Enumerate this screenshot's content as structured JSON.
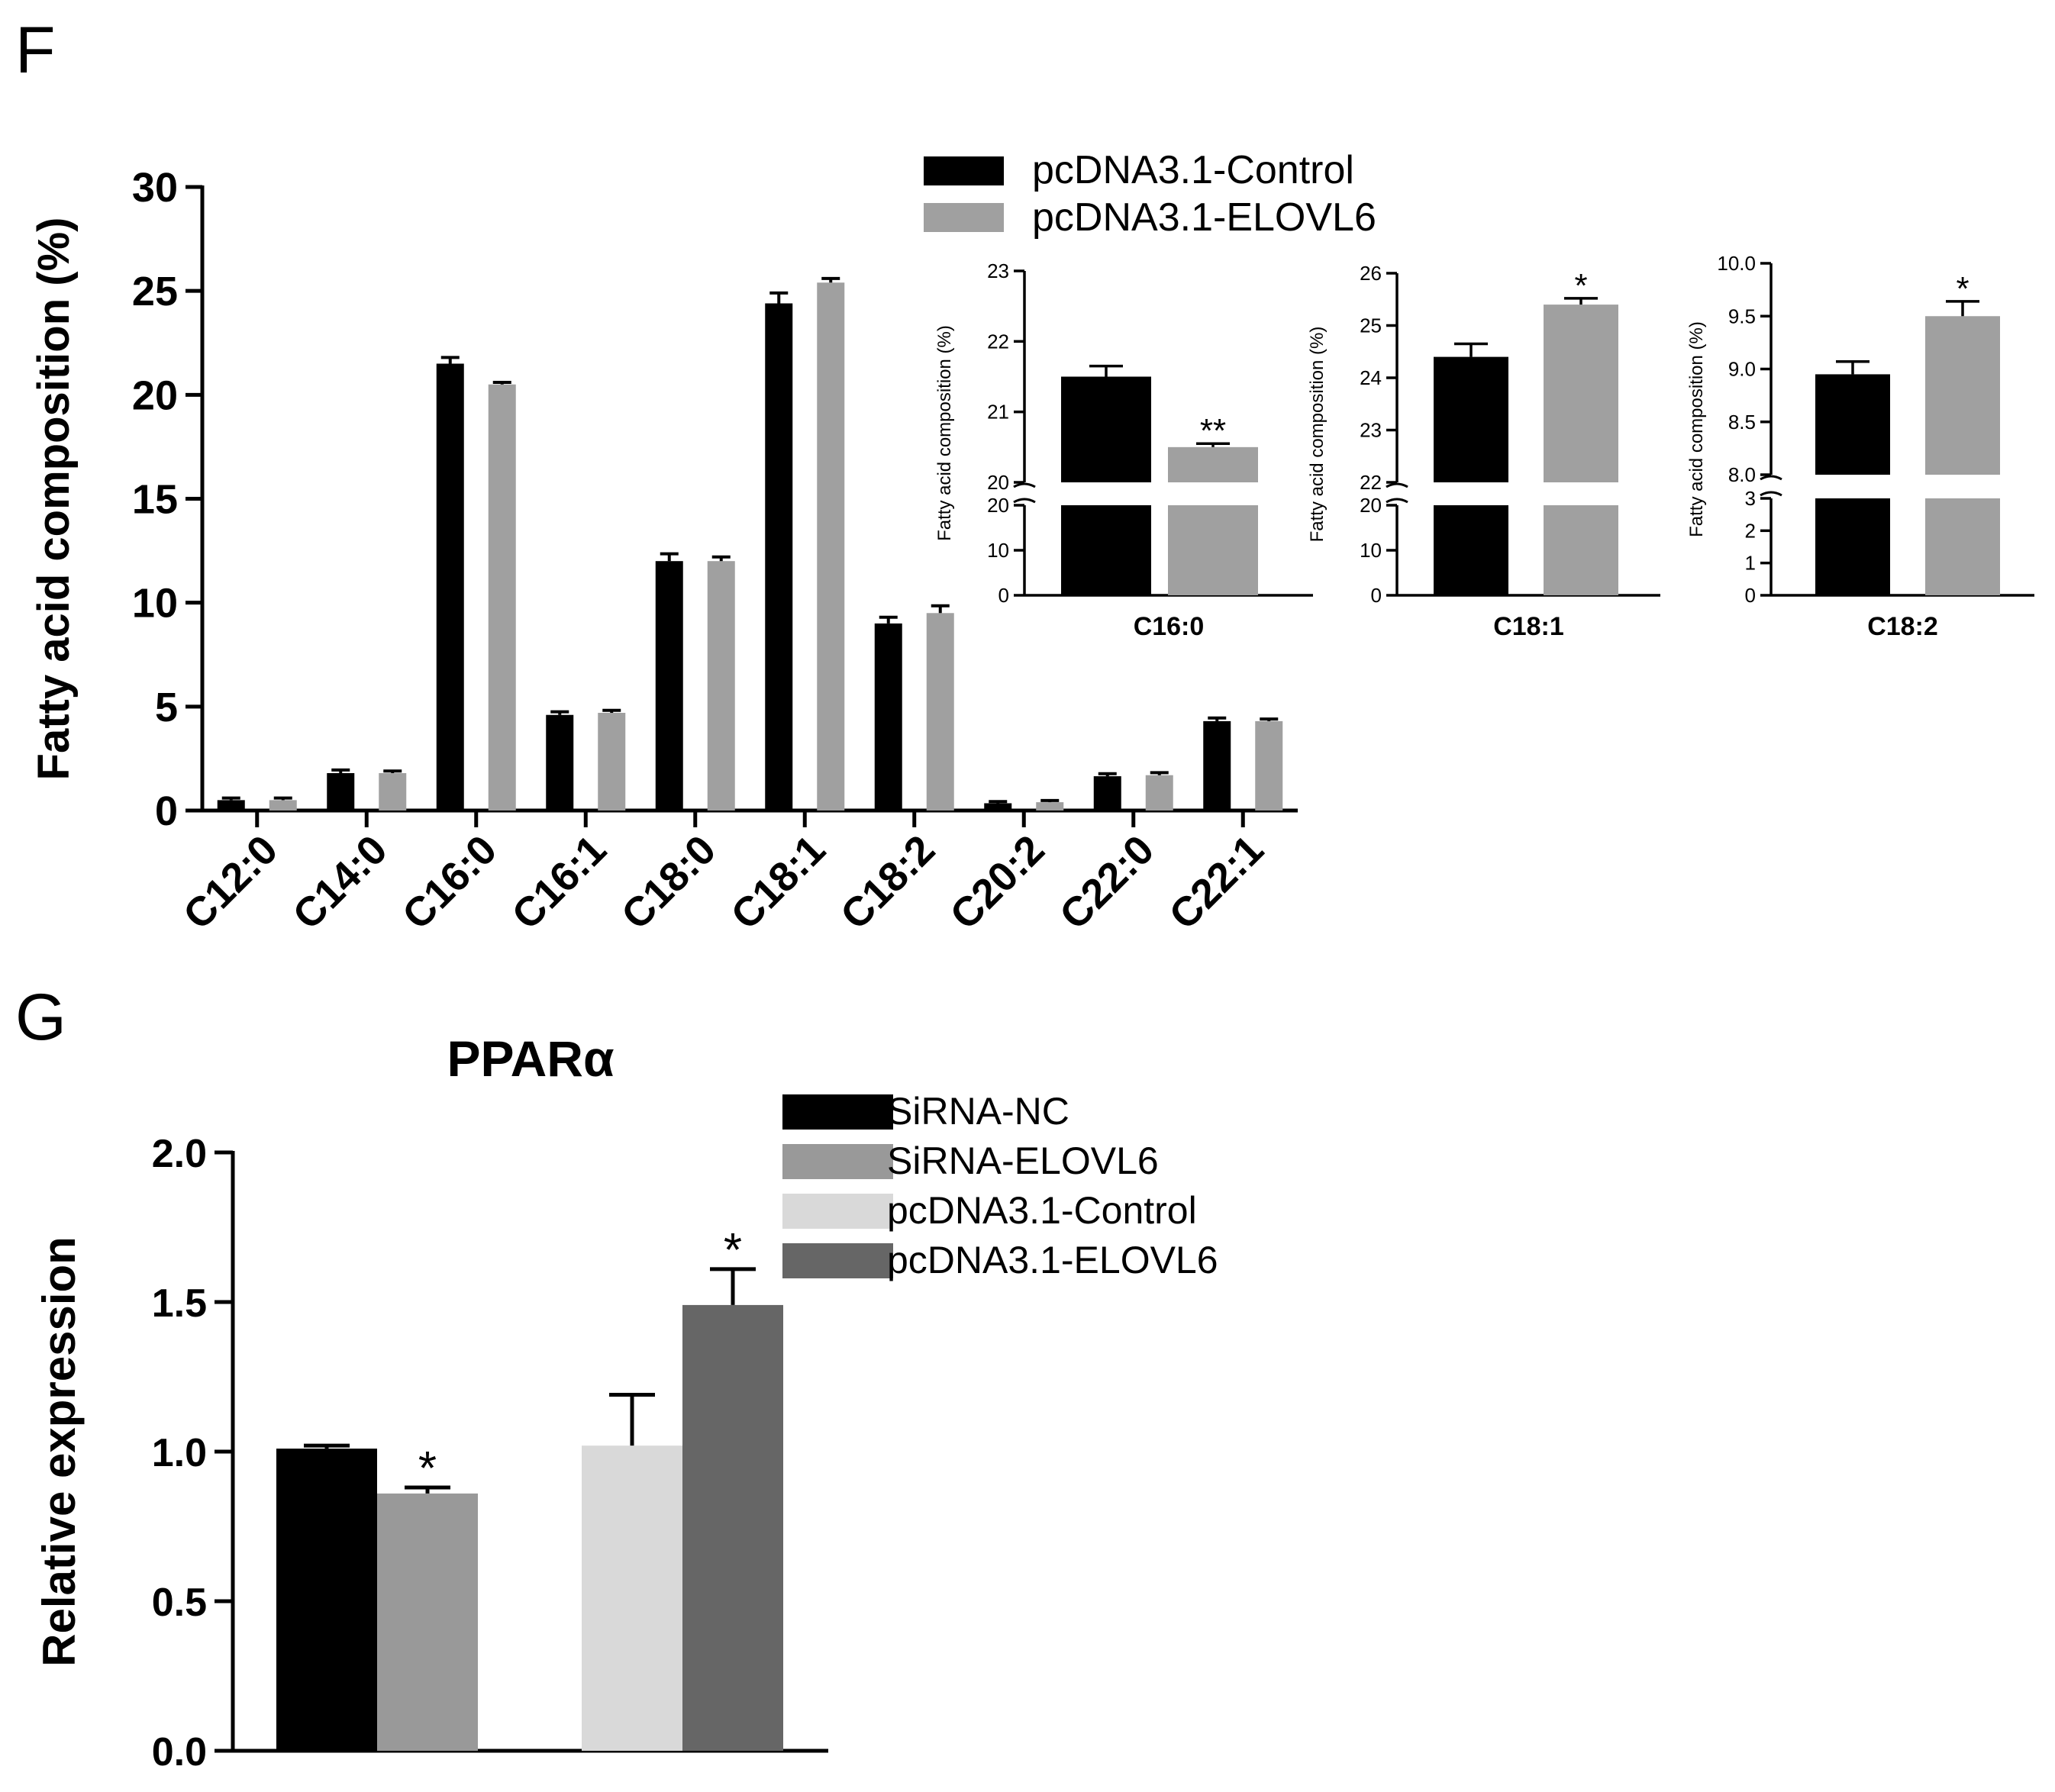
{
  "panel_f": {
    "label": "F",
    "legend": [
      "pcDNA3.1-Control",
      "pcDNA3.1-ELOVL6"
    ]
  },
  "panel_g": {
    "label": "G"
  },
  "colors": {
    "control": "#000000",
    "elovl6": "#a0a0a0",
    "sirna_nc": "#000000",
    "sirna_elovl6": "#999999",
    "pcdna_control": "#d9d9d9",
    "pcdna_elovl6": "#666666"
  },
  "chart_data": [
    {
      "id": "main",
      "type": "bar",
      "title": "",
      "xlabel": "",
      "ylabel": "Fatty acid composition (%)",
      "ylim": [
        0,
        30
      ],
      "yticks": [
        "0",
        "5",
        "10",
        "15",
        "20",
        "25",
        "30"
      ],
      "categories": [
        "C12:0",
        "C14:0",
        "C16:0",
        "C16:1",
        "C18:0",
        "C18:1",
        "C18:2",
        "C20:2",
        "C22:0",
        "C22:1"
      ],
      "series": [
        {
          "name": "pcDNA3.1-Control",
          "values": [
            0.5,
            1.8,
            21.5,
            4.6,
            12.0,
            24.4,
            9.0,
            0.35,
            1.65,
            4.3
          ],
          "errors": [
            0.1,
            0.15,
            0.3,
            0.15,
            0.35,
            0.5,
            0.3,
            0.08,
            0.12,
            0.15
          ]
        },
        {
          "name": "pcDNA3.1-ELOVL6",
          "values": [
            0.5,
            1.8,
            20.5,
            4.7,
            12.0,
            25.4,
            9.5,
            0.4,
            1.7,
            4.3
          ],
          "errors": [
            0.1,
            0.1,
            0.1,
            0.12,
            0.2,
            0.2,
            0.35,
            0.08,
            0.12,
            0.1
          ]
        }
      ]
    },
    {
      "id": "inset_c16",
      "type": "bar",
      "xlabel": "C16:0",
      "ylabel": "Fatty acid composition (%)",
      "ylim_lower": [
        0,
        20
      ],
      "ylim_upper": [
        20,
        23
      ],
      "yticks_lower": [
        "0",
        "10",
        "20"
      ],
      "yticks_upper": [
        "20",
        "21",
        "22",
        "23"
      ],
      "series": [
        {
          "name": "pcDNA3.1-Control",
          "value": 21.5,
          "error": 0.15,
          "sig": ""
        },
        {
          "name": "pcDNA3.1-ELOVL6",
          "value": 20.5,
          "error": 0.05,
          "sig": "**"
        }
      ]
    },
    {
      "id": "inset_c181",
      "type": "bar",
      "xlabel": "C18:1",
      "ylabel": "Fatty acid composition (%)",
      "ylim_lower": [
        0,
        20
      ],
      "ylim_upper": [
        22,
        26
      ],
      "yticks_lower": [
        "0",
        "10",
        "20"
      ],
      "yticks_upper": [
        "22",
        "23",
        "24",
        "25",
        "26"
      ],
      "series": [
        {
          "name": "pcDNA3.1-Control",
          "value": 24.4,
          "error": 0.25,
          "sig": ""
        },
        {
          "name": "pcDNA3.1-ELOVL6",
          "value": 25.4,
          "error": 0.12,
          "sig": "*"
        }
      ]
    },
    {
      "id": "inset_c182",
      "type": "bar",
      "xlabel": "C18:2",
      "ylabel": "Fatty acid composition (%)",
      "ylim_lower": [
        0,
        3
      ],
      "ylim_upper": [
        8.0,
        10.0
      ],
      "yticks_lower": [
        "0",
        "1",
        "2",
        "3"
      ],
      "yticks_upper": [
        "8.0",
        "8.5",
        "9.0",
        "9.5",
        "10.0"
      ],
      "series": [
        {
          "name": "pcDNA3.1-Control",
          "value": 8.95,
          "error": 0.12,
          "sig": ""
        },
        {
          "name": "pcDNA3.1-ELOVL6",
          "value": 9.5,
          "error": 0.14,
          "sig": "*"
        }
      ]
    },
    {
      "id": "ppara",
      "type": "bar",
      "title": "PPARα",
      "xlabel": "",
      "ylabel": "Relative expression",
      "ylim": [
        0,
        2.0
      ],
      "yticks": [
        "0.0",
        "0.5",
        "1.0",
        "1.5",
        "2.0"
      ],
      "legend": [
        "SiRNA-NC",
        "SiRNA-ELOVL6",
        "pcDNA3.1-Control",
        "pcDNA3.1-ELOVL6"
      ],
      "series": [
        {
          "name": "SiRNA-NC",
          "value": 1.01,
          "error": 0.01,
          "sig": ""
        },
        {
          "name": "SiRNA-ELOVL6",
          "value": 0.86,
          "error": 0.02,
          "sig": "*"
        },
        {
          "name": "pcDNA3.1-Control",
          "value": 1.02,
          "error": 0.17,
          "sig": ""
        },
        {
          "name": "pcDNA3.1-ELOVL6",
          "value": 1.49,
          "error": 0.12,
          "sig": "*"
        }
      ]
    }
  ]
}
